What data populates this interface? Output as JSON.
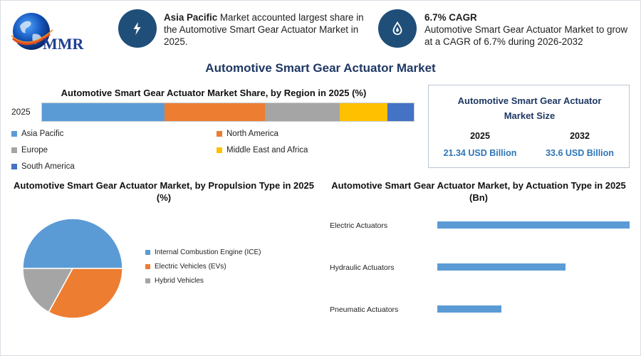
{
  "logo": {
    "text": "MMR"
  },
  "info": [
    {
      "icon": "lightning-icon",
      "bold": "Asia Pacific",
      "text": " Market accounted largest share in the Automotive Smart Gear Actuator Market in 2025."
    },
    {
      "icon": "droplet-icon",
      "bold": "6.7% CAGR",
      "text": "Automotive Smart Gear Actuator Market to grow at a CAGR of 6.7% during 2026-2032"
    }
  ],
  "main_title": "Automotive Smart Gear Actuator Market",
  "market_size": {
    "title": "Automotive Smart Gear Actuator Market Size",
    "columns": [
      {
        "year": "2025",
        "value": "21.34 USD Billion"
      },
      {
        "year": "2032",
        "value": "33.6 USD Billion"
      }
    ]
  },
  "colors": {
    "blue": "#5b9bd5",
    "orange": "#ed7d31",
    "gray": "#a5a5a5",
    "yellow": "#ffc000",
    "darkblue": "#4472c4",
    "navy": "#1f4e79"
  },
  "chart_data": [
    {
      "type": "bar",
      "stacked": true,
      "orientation": "horizontal",
      "title": "Automotive Smart Gear Actuator Market Share, by Region in 2025 (%)",
      "categories": [
        "2025"
      ],
      "series": [
        {
          "name": "Asia Pacific",
          "values": [
            33
          ],
          "color": "#5b9bd5"
        },
        {
          "name": "North America",
          "values": [
            27
          ],
          "color": "#ed7d31"
        },
        {
          "name": "Europe",
          "values": [
            20
          ],
          "color": "#a5a5a5"
        },
        {
          "name": "Middle East and Africa",
          "values": [
            13
          ],
          "color": "#ffc000"
        },
        {
          "name": "South America",
          "values": [
            7
          ],
          "color": "#4472c4"
        }
      ],
      "legend": "bottom"
    },
    {
      "type": "pie",
      "title": "Automotive Smart Gear Actuator Market, by Propulsion Type in 2025 (%)",
      "labels": [
        "Internal Combustion Engine (ICE)",
        "Electric Vehicles (EVs)",
        "Hybrid Vehicles"
      ],
      "values": [
        50,
        33,
        17
      ],
      "colors": [
        "#5b9bd5",
        "#ed7d31",
        "#a5a5a5"
      ],
      "legend": "right"
    },
    {
      "type": "bar",
      "orientation": "horizontal",
      "title": "Automotive Smart Gear Actuator Market, by Actuation Type in 2025 (Bn)",
      "categories": [
        "Electric Actuators",
        "Hydraulic Actuators",
        "Pneumatic Actuators"
      ],
      "values": [
        10.5,
        7.0,
        3.5
      ],
      "color": "#5b9bd5"
    }
  ]
}
